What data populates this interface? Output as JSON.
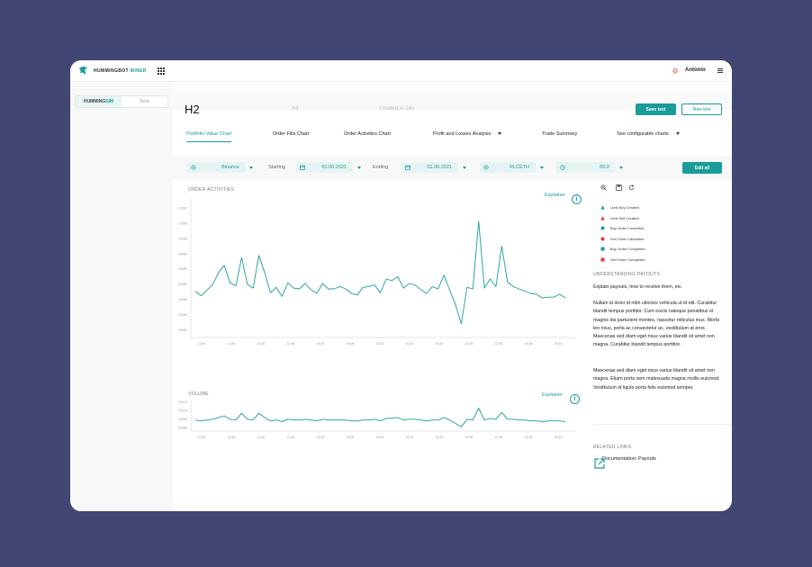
{
  "brand": {
    "name_a": "HUMMINGBOT ",
    "name_b": "MINER"
  },
  "header": {
    "user": "Antonio"
  },
  "sidebar": {
    "opt_a1": "HUMMING",
    "opt_a2": "SIM",
    "opt_b": "Beta"
  },
  "page": {
    "title": "H2",
    "subtitle": "H4",
    "created": "Created in 14s",
    "save_label": "Save test",
    "new_label": "New test",
    "edit_label": "Edit all"
  },
  "tabs": [
    {
      "label": "Portfolio Value Chart",
      "active": true
    },
    {
      "label": "Order Fills Chart"
    },
    {
      "label": "Order Activities Chart"
    },
    {
      "label": "Profit and Losses Analysis"
    },
    {
      "label": "Trade Summary"
    },
    {
      "label": "See configurable charts"
    }
  ],
  "filters": {
    "exchange": "Binance",
    "starting_label": "Starting",
    "start_date": "01.06.2021",
    "ending_label": "Ending",
    "end_date": "01.06.2021",
    "pair": "RLCETH",
    "interval": "60.0"
  },
  "charts": {
    "order_activities_title": "ORDER ACTIVITIES",
    "volume_title": "VOLUME",
    "explainer": "Explainer"
  },
  "chart_data": [
    {
      "type": "line",
      "title": "ORDER ACTIVITIES",
      "x_ticks": [
        "13:00",
        "13:55",
        "14:50",
        "14:55",
        "15:00",
        "15:05",
        "15:10",
        "15:15",
        "15:20",
        "15:25",
        "15:30",
        "15:35",
        "15:40"
      ],
      "y_ticks": [
        "0.0097",
        "0.0095",
        "0.0093",
        "0.0091",
        "0.0089",
        "0.0087",
        "0.0085",
        "0.0083",
        "0.0081"
      ],
      "ylim": [
        0.008,
        0.0098
      ],
      "series": [
        {
          "values": [
            0.00861,
            0.00855,
            0.00862,
            0.0087,
            0.00885,
            0.00895,
            0.00872,
            0.00868,
            0.00905,
            0.0087,
            0.00865,
            0.00908,
            0.00885,
            0.00859,
            0.00866,
            0.00854,
            0.00872,
            0.00865,
            0.00864,
            0.00871,
            0.00863,
            0.00858,
            0.00871,
            0.00864,
            0.00864,
            0.00867,
            0.00864,
            0.00858,
            0.00856,
            0.00866,
            0.00867,
            0.00869,
            0.00859,
            0.00877,
            0.00875,
            0.0088,
            0.00865,
            0.00871,
            0.00869,
            0.00863,
            0.00858,
            0.00867,
            0.00864,
            0.00882,
            0.00862,
            0.00843,
            0.00818,
            0.00866,
            0.00864,
            0.00953,
            0.00865,
            0.00877,
            0.00867,
            0.0092,
            0.00873,
            0.00867,
            0.00864,
            0.00861,
            0.00858,
            0.00857,
            0.00852,
            0.00853,
            0.00853,
            0.00857,
            0.00852
          ]
        }
      ]
    },
    {
      "type": "line",
      "title": "VOLUME",
      "x_ticks": [
        "13:00",
        "13:55",
        "14:50",
        "14:55",
        "15:00",
        "15:05",
        "15:10",
        "15:15",
        "15:20",
        "15:25",
        "15:30",
        "15:35",
        "15:40"
      ],
      "y_ticks": [
        "0.0071",
        "0.0070",
        "0.0069",
        "0.0068"
      ],
      "ylim": [
        0.00676,
        0.00712
      ],
      "series": [
        {
          "values": [
            0.00689,
            0.00688,
            0.00689,
            0.0069,
            0.00692,
            0.00694,
            0.0069,
            0.00689,
            0.00697,
            0.0069,
            0.00689,
            0.00697,
            0.00692,
            0.00688,
            0.00689,
            0.00687,
            0.0069,
            0.00689,
            0.00689,
            0.0069,
            0.00689,
            0.00688,
            0.0069,
            0.00689,
            0.00689,
            0.00689,
            0.00689,
            0.00688,
            0.00688,
            0.00689,
            0.00689,
            0.0069,
            0.00688,
            0.00691,
            0.00691,
            0.00692,
            0.00689,
            0.0069,
            0.0069,
            0.00689,
            0.00688,
            0.00689,
            0.00689,
            0.00692,
            0.00689,
            0.00685,
            0.00681,
            0.0069,
            0.00689,
            0.00703,
            0.00689,
            0.00691,
            0.0069,
            0.00698,
            0.0069,
            0.0069,
            0.00689,
            0.00689,
            0.00688,
            0.00688,
            0.00687,
            0.00688,
            0.00688,
            0.00688,
            0.00687
          ]
        }
      ]
    }
  ],
  "legend": [
    {
      "label": "Limit Buy Created",
      "shape": "triangle",
      "color": "#1a9c99"
    },
    {
      "label": "Limit Sell Created",
      "shape": "triangle",
      "color": "#e03b3b"
    },
    {
      "label": "Buy Order Cancelled",
      "shape": "circle",
      "color": "#1a9c99"
    },
    {
      "label": "Sell Order Cancelled",
      "shape": "circle",
      "color": "#e03b3b"
    },
    {
      "label": "Buy Order Completed",
      "shape": "square",
      "color": "#1a9c99"
    },
    {
      "label": "Sell Order Completed",
      "shape": "square",
      "color": "#e03b3b"
    }
  ],
  "understanding": {
    "title": "UNDERSTANDING PAYOUTS",
    "intro": "Explain payouts, how to receive them, etc.",
    "p1": "Nullam id dolor id nibh ultricies vehicula ut id elit. Curabitur blandit tempus porttitor. Cum sociis natoque penatibus et magnis dis parturient montes, nascetur ridiculus mus. Morbi leo risus, porta ac consectetur ac, vestibulum at eros. Maecenas sed diam eget risus varius blandit sit amet non magna. Curabitur blandit tempus porttitor.",
    "p2": "Maecenas sed diam eget risus varius blandit sit amet non magna. Etiam porta sem malesuada magna mollis euismod. Vestibulum id ligula porta felis euismod semper."
  },
  "related": {
    "title": "RELATED LINKS",
    "link": "Documentation: Payouts"
  },
  "icons": [
    "hummingbird-logo",
    "grid-icon",
    "bell-icon",
    "menu-icon",
    "gear-icon",
    "calendar-icon",
    "clock-icon",
    "info-icon",
    "zoom-icon",
    "save-icon",
    "refresh-icon",
    "external-link-icon"
  ],
  "colors": {
    "accent": "#1a9c99",
    "sell": "#e03b3b",
    "background": "#424673"
  }
}
